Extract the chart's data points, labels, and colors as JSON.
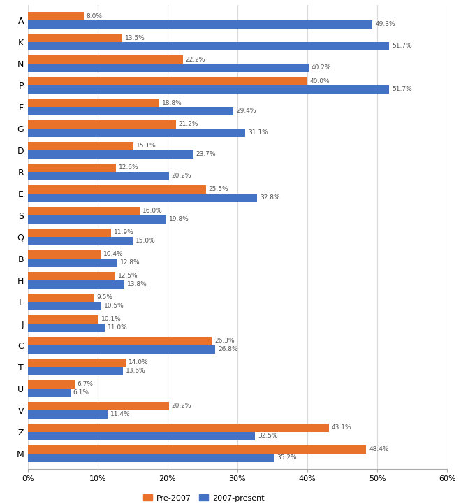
{
  "categories": [
    "A",
    "K",
    "N",
    "P",
    "F",
    "G",
    "D",
    "R",
    "E",
    "S",
    "Q",
    "B",
    "H",
    "L",
    "J",
    "C",
    "T",
    "U",
    "V",
    "Z",
    "M"
  ],
  "pre2007": [
    8.0,
    13.5,
    22.2,
    40.0,
    18.8,
    21.2,
    15.1,
    12.6,
    25.5,
    16.0,
    11.9,
    10.4,
    12.5,
    9.5,
    10.1,
    26.3,
    14.0,
    6.7,
    20.2,
    43.1,
    48.4
  ],
  "present": [
    49.3,
    51.7,
    40.2,
    51.7,
    29.4,
    31.1,
    23.7,
    20.2,
    32.8,
    19.8,
    15.0,
    12.8,
    13.8,
    10.5,
    11.0,
    26.8,
    13.6,
    6.1,
    11.4,
    32.5,
    35.2
  ],
  "color_pre2007": "#E8722A",
  "color_present": "#4472C4",
  "xlim": [
    0,
    60
  ],
  "xticks": [
    0,
    10,
    20,
    30,
    40,
    50,
    60
  ],
  "xticklabels": [
    "0%",
    "10%",
    "20%",
    "30%",
    "40%",
    "50%",
    "60%"
  ],
  "bar_height": 0.38,
  "legend_labels": [
    "Pre-2007",
    "2007-present"
  ],
  "background_color": "#FFFFFF",
  "grid_color": "#D9D9D9",
  "label_fontsize": 6.5,
  "ytick_fontsize": 9,
  "xtick_fontsize": 8
}
